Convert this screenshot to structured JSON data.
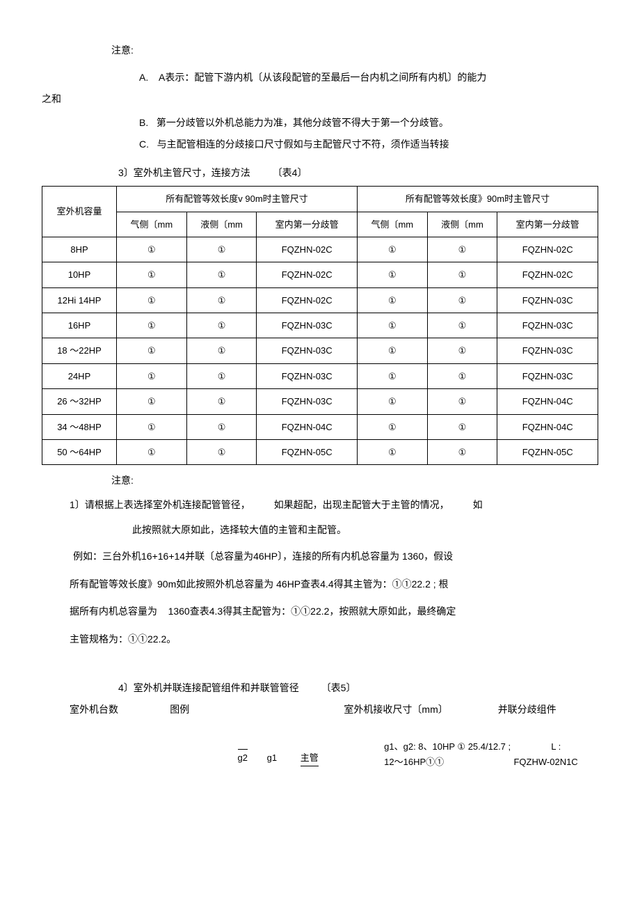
{
  "notes_top": {
    "label": "注意:",
    "a_prefix": "A.",
    "a_text": "A表示：配管下游内机〔从该段配管的至最后一台内机之间所有内机〕的能力",
    "a_tail": "之和",
    "b_prefix": "B.",
    "b_text": "第一分歧管以外机总能力为准，其他分歧管不得大于第一个分歧管。",
    "c_prefix": "C.",
    "c_text": "与主配管相连的分歧接口尺寸假如与主配管尺寸不符，须作适当转接"
  },
  "section3": {
    "title_a": "3〕室外机主管尺寸，连接方法",
    "title_b": "〔表4〕",
    "th_capacity": "室外机容量",
    "th_group1": "所有配管等效长度v 90m时主管尺寸",
    "th_group2": "所有配管等效长度》90m时主管尺寸",
    "th_gas": "气侧〔mm",
    "th_liquid": "液侧〔mm",
    "th_branch": "室内第一分歧管",
    "circled": "①",
    "rows": [
      {
        "cap": "8HP",
        "b1": "FQZHN-02C",
        "b2": "FQZHN-02C"
      },
      {
        "cap": "10HP",
        "b1": "FQZHN-02C",
        "b2": "FQZHN-02C"
      },
      {
        "cap": "12Hi 14HP",
        "b1": "FQZHN-02C",
        "b2": "FQZHN-03C"
      },
      {
        "cap": "16HP",
        "b1": "FQZHN-03C",
        "b2": "FQZHN-03C"
      },
      {
        "cap": "18 ～22HP",
        "b1": "FQZHN-03C",
        "b2": "FQZHN-03C"
      },
      {
        "cap": "24HP",
        "b1": "FQZHN-03C",
        "b2": "FQZHN-03C"
      },
      {
        "cap": "26 ～32HP",
        "b1": "FQZHN-03C",
        "b2": "FQZHN-04C"
      },
      {
        "cap": "34 ～48HP",
        "b1": "FQZHN-04C",
        "b2": "FQZHN-04C"
      },
      {
        "cap": "50 ～64HP",
        "b1": "FQZHN-05C",
        "b2": "FQZHN-05C"
      }
    ]
  },
  "notes_mid": {
    "label": "注意:",
    "line1_a": "1〕请根据上表选择室外机连接配管管径，",
    "line1_b": "如果超配，出现主配管大于主管的情况，",
    "line1_c": "如",
    "line2": "此按照就大原如此，选择较大值的主管和主配管。",
    "ex_l1_a": "例如：三台外机16+16+14并联〔总容量为46HP〕，连接的所有内机总容量为",
    "ex_l1_b": "1360，假设",
    "ex_l2_a": "所有配管等效长度》90m如此按照外机总容量为",
    "ex_l2_b": "46HP查表4.4得其主管为：①①22.2 ; 根",
    "ex_l3_a": "据所有内机总容量为",
    "ex_l3_b": "1360查表4.3得其主配管为：①①22.2，按照就大原如此，最终确定",
    "ex_l4": "主管规格为：①①22.2。"
  },
  "section4": {
    "title_a": "4〕室外机并联连接配管组件和并联管管径",
    "title_b": "〔表5〕",
    "h1": "室外机台数",
    "h2": "图例",
    "h3": "室外机接收尺寸〔mm〕",
    "h4": "并联分歧组件",
    "d_g2": "g2",
    "d_g1": "g1",
    "d_main": "主管",
    "spec_l1": "g1、g2: 8、10HP ① 25.4/12.7 ;",
    "spec_l2": "12～16HP①①",
    "join_l1": "L :",
    "join_l2": "FQZHW-02N1C"
  }
}
